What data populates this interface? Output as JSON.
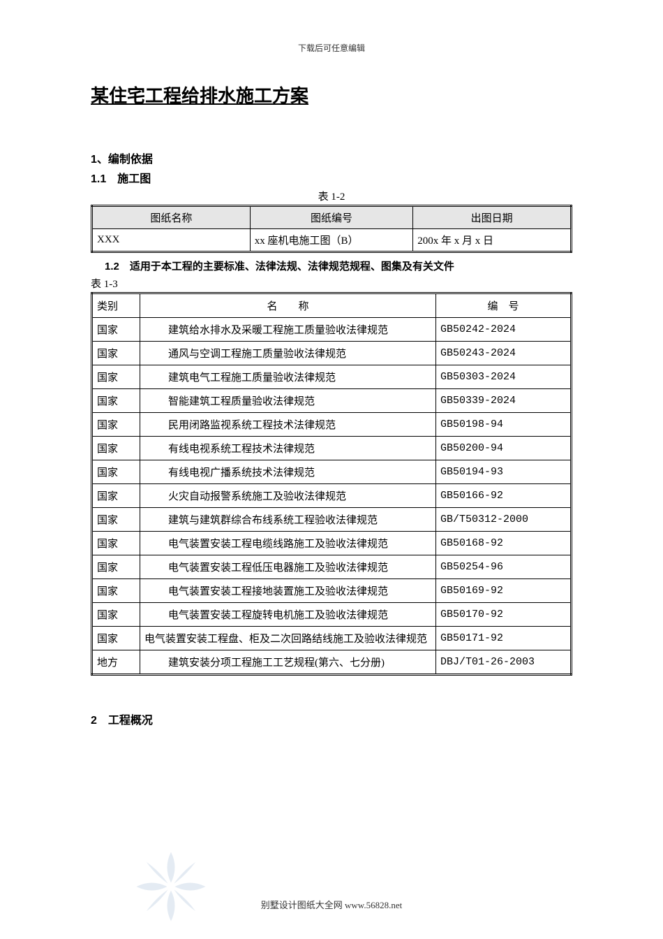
{
  "top_note": "下载后可任意编辑",
  "title": "某住宅工程给排水施工方案",
  "section1": {
    "heading": "1、编制依据",
    "sub1": {
      "heading": "1.1　施工图",
      "caption": "表 1-2"
    },
    "sub2": {
      "heading": "1.2　适用于本工程的主要标准、法律法规、法律规范规程、图集及有关文件",
      "caption": "表 1-3"
    }
  },
  "table1": {
    "headers": [
      "图纸名称",
      "图纸编号",
      "出图日期"
    ],
    "row": [
      "XXX",
      "xx 座机电施工图（B）",
      "200x 年 x 月 x 日"
    ]
  },
  "table2": {
    "headers": {
      "cat": "类别",
      "name": "名　　称",
      "code": "编　号"
    },
    "rows": [
      {
        "cat": "国家",
        "name": "建筑给水排水及采暖工程施工质量验收法律规范",
        "code": "GB50242-2024"
      },
      {
        "cat": "国家",
        "name": "通风与空调工程施工质量验收法律规范",
        "code": "GB50243-2024"
      },
      {
        "cat": "国家",
        "name": "建筑电气工程施工质量验收法律规范",
        "code": "GB50303-2024"
      },
      {
        "cat": "国家",
        "name": "智能建筑工程质量验收法律规范",
        "code": "GB50339-2024"
      },
      {
        "cat": "国家",
        "name": "民用闭路监视系统工程技术法律规范",
        "code": "GB50198-94"
      },
      {
        "cat": "国家",
        "name": "有线电视系统工程技术法律规范",
        "code": "GB50200-94"
      },
      {
        "cat": "国家",
        "name": "有线电视广播系统技术法律规范",
        "code": "GB50194-93"
      },
      {
        "cat": "国家",
        "name": "火灾自动报警系统施工及验收法律规范",
        "code": "GB50166-92"
      },
      {
        "cat": "国家",
        "name": "建筑与建筑群综合布线系统工程验收法律规范",
        "code": "GB/T50312-2000"
      },
      {
        "cat": "国家",
        "name": "电气装置安装工程电缆线路施工及验收法律规范",
        "code": "GB50168-92"
      },
      {
        "cat": "国家",
        "name": "电气装置安装工程低压电器施工及验收法律规范",
        "code": "GB50254-96"
      },
      {
        "cat": "国家",
        "name": "电气装置安装工程接地装置施工及验收法律规范",
        "code": "GB50169-92"
      },
      {
        "cat": "国家",
        "name": "电气装置安装工程旋转电机施工及验收法律规范",
        "code": "GB50170-92"
      },
      {
        "cat": "国家",
        "name": "电气装置安装工程盘、柜及二次回路结线施工及验收法律规范",
        "code": "GB50171-92",
        "tight": true
      },
      {
        "cat": "地方",
        "name": "建筑安装分项工程施工工艺规程(第六、七分册)",
        "code": "DBJ/T01-26-2003"
      }
    ]
  },
  "section2_heading": "2　工程概况",
  "footer": "别墅设计图纸大全网 www.56828.net"
}
